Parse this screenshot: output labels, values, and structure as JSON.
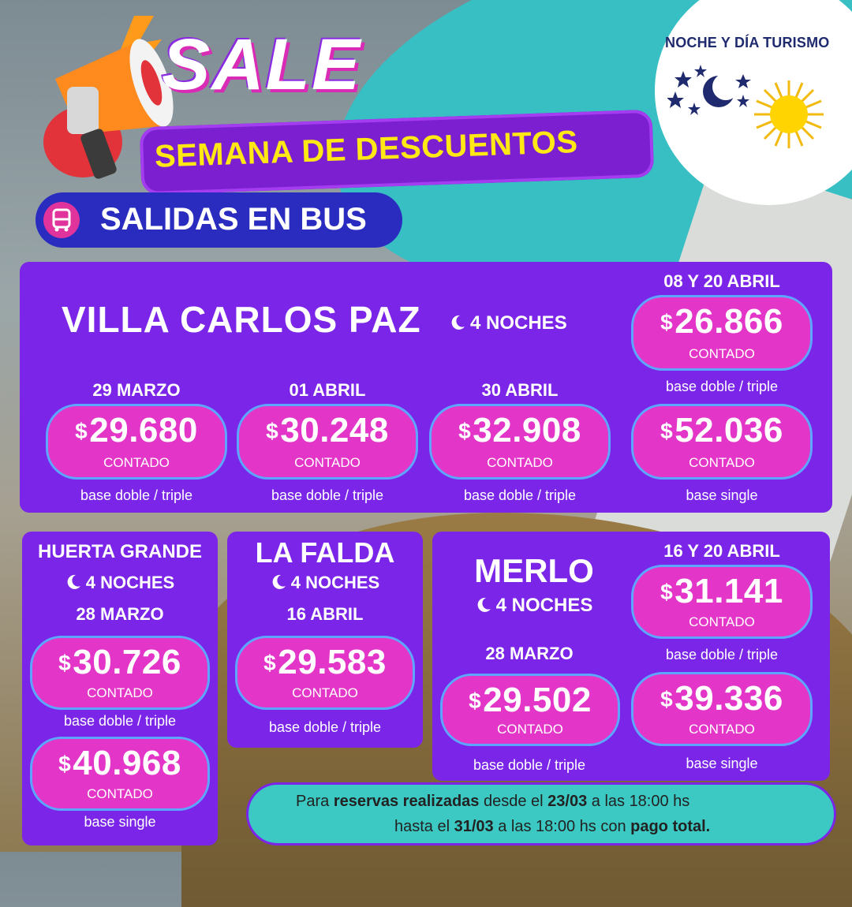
{
  "brand": {
    "name": "NOCHE Y DÍA TURISMO"
  },
  "header": {
    "sale": "SALE",
    "semana": "SEMANA DE DESCUENTOS",
    "salidas": "SALIDAS EN BUS"
  },
  "currency": "$",
  "contado": "CONTADO",
  "vcp": {
    "title": "VILLA CARLOS PAZ",
    "nights": "4 NOCHES",
    "dates": [
      {
        "date": "29 MARZO",
        "price": "29.680",
        "base": "base doble / triple"
      },
      {
        "date": "01 ABRIL",
        "price": "30.248",
        "base": "base doble / triple"
      },
      {
        "date": "30 ABRIL",
        "price": "32.908",
        "base": "base doble / triple"
      }
    ],
    "special": {
      "date": "08 Y 20 ABRIL",
      "price1": "26.866",
      "base1": "base doble / triple",
      "price2": "52.036",
      "base2": "base single"
    }
  },
  "huerta": {
    "title": "HUERTA GRANDE",
    "nights": "4 NOCHES",
    "date": "28 MARZO",
    "price1": "30.726",
    "base1": "base doble / triple",
    "price2": "40.968",
    "base2": "base single"
  },
  "falda": {
    "title": "LA FALDA",
    "nights": "4 NOCHES",
    "date": "16 ABRIL",
    "price": "29.583",
    "base": "base doble / triple"
  },
  "merlo": {
    "title": "MERLO",
    "nights": "4 NOCHES",
    "date": "28 MARZO",
    "price": "29.502",
    "base": "base doble / triple",
    "special": {
      "date": "16 Y 20 ABRIL",
      "price1": "31.141",
      "base1": "base doble / triple",
      "price2": "39.336",
      "base2": "base single"
    }
  },
  "note": {
    "l1a": "Para ",
    "l1b": "reservas realizadas",
    "l1c": " desde el ",
    "l1d": "23/03",
    "l1e": " a las 18:00 hs",
    "l2a": "hasta el ",
    "l2b": "31/03",
    "l2c": " a las 18:00 hs con ",
    "l2d": "pago total."
  },
  "colors": {
    "panel": "#7a25e8",
    "pill": "#e335c8",
    "accent_yellow": "#ffe814",
    "teal": "#37bfc4"
  }
}
